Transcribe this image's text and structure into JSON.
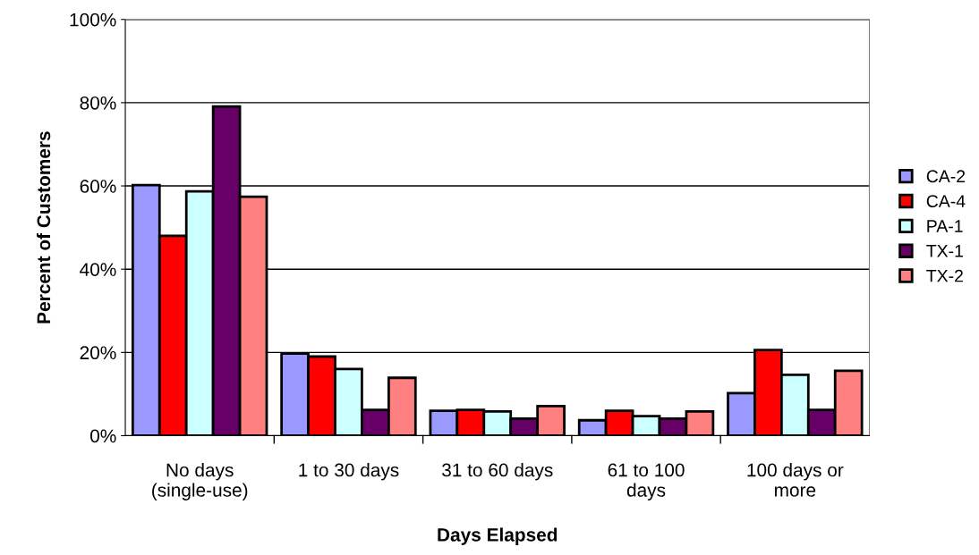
{
  "chart_data": {
    "type": "bar",
    "xlabel": "Days Elapsed",
    "ylabel": "Percent of Customers",
    "categories": [
      "No days\n(single-use)",
      "1 to 30 days",
      "31 to 60 days",
      "61 to 100\ndays",
      "100 days or\nmore"
    ],
    "series": [
      {
        "name": "CA-2",
        "color": "#9999ff",
        "values": [
          60.2,
          19.7,
          6.0,
          3.7,
          10.2
        ]
      },
      {
        "name": "CA-4",
        "color": "#ff0000",
        "values": [
          48.0,
          19.0,
          6.2,
          6.0,
          20.6
        ]
      },
      {
        "name": "PA-1",
        "color": "#ccffff",
        "values": [
          58.7,
          16.0,
          5.8,
          4.7,
          14.6
        ]
      },
      {
        "name": "TX-1",
        "color": "#660066",
        "values": [
          79.1,
          6.2,
          4.1,
          4.1,
          6.2
        ]
      },
      {
        "name": "TX-2",
        "color": "#ff8080",
        "values": [
          57.4,
          13.9,
          7.1,
          5.8,
          15.6
        ]
      }
    ],
    "ylim": [
      0,
      100
    ],
    "yticks": [
      {
        "value": 0,
        "label": "0%"
      },
      {
        "value": 20,
        "label": "20%"
      },
      {
        "value": 40,
        "label": "40%"
      },
      {
        "value": 60,
        "label": "60%"
      },
      {
        "value": 80,
        "label": "80%"
      },
      {
        "value": 100,
        "label": "100%"
      }
    ],
    "grid": "y",
    "legend": "right"
  }
}
